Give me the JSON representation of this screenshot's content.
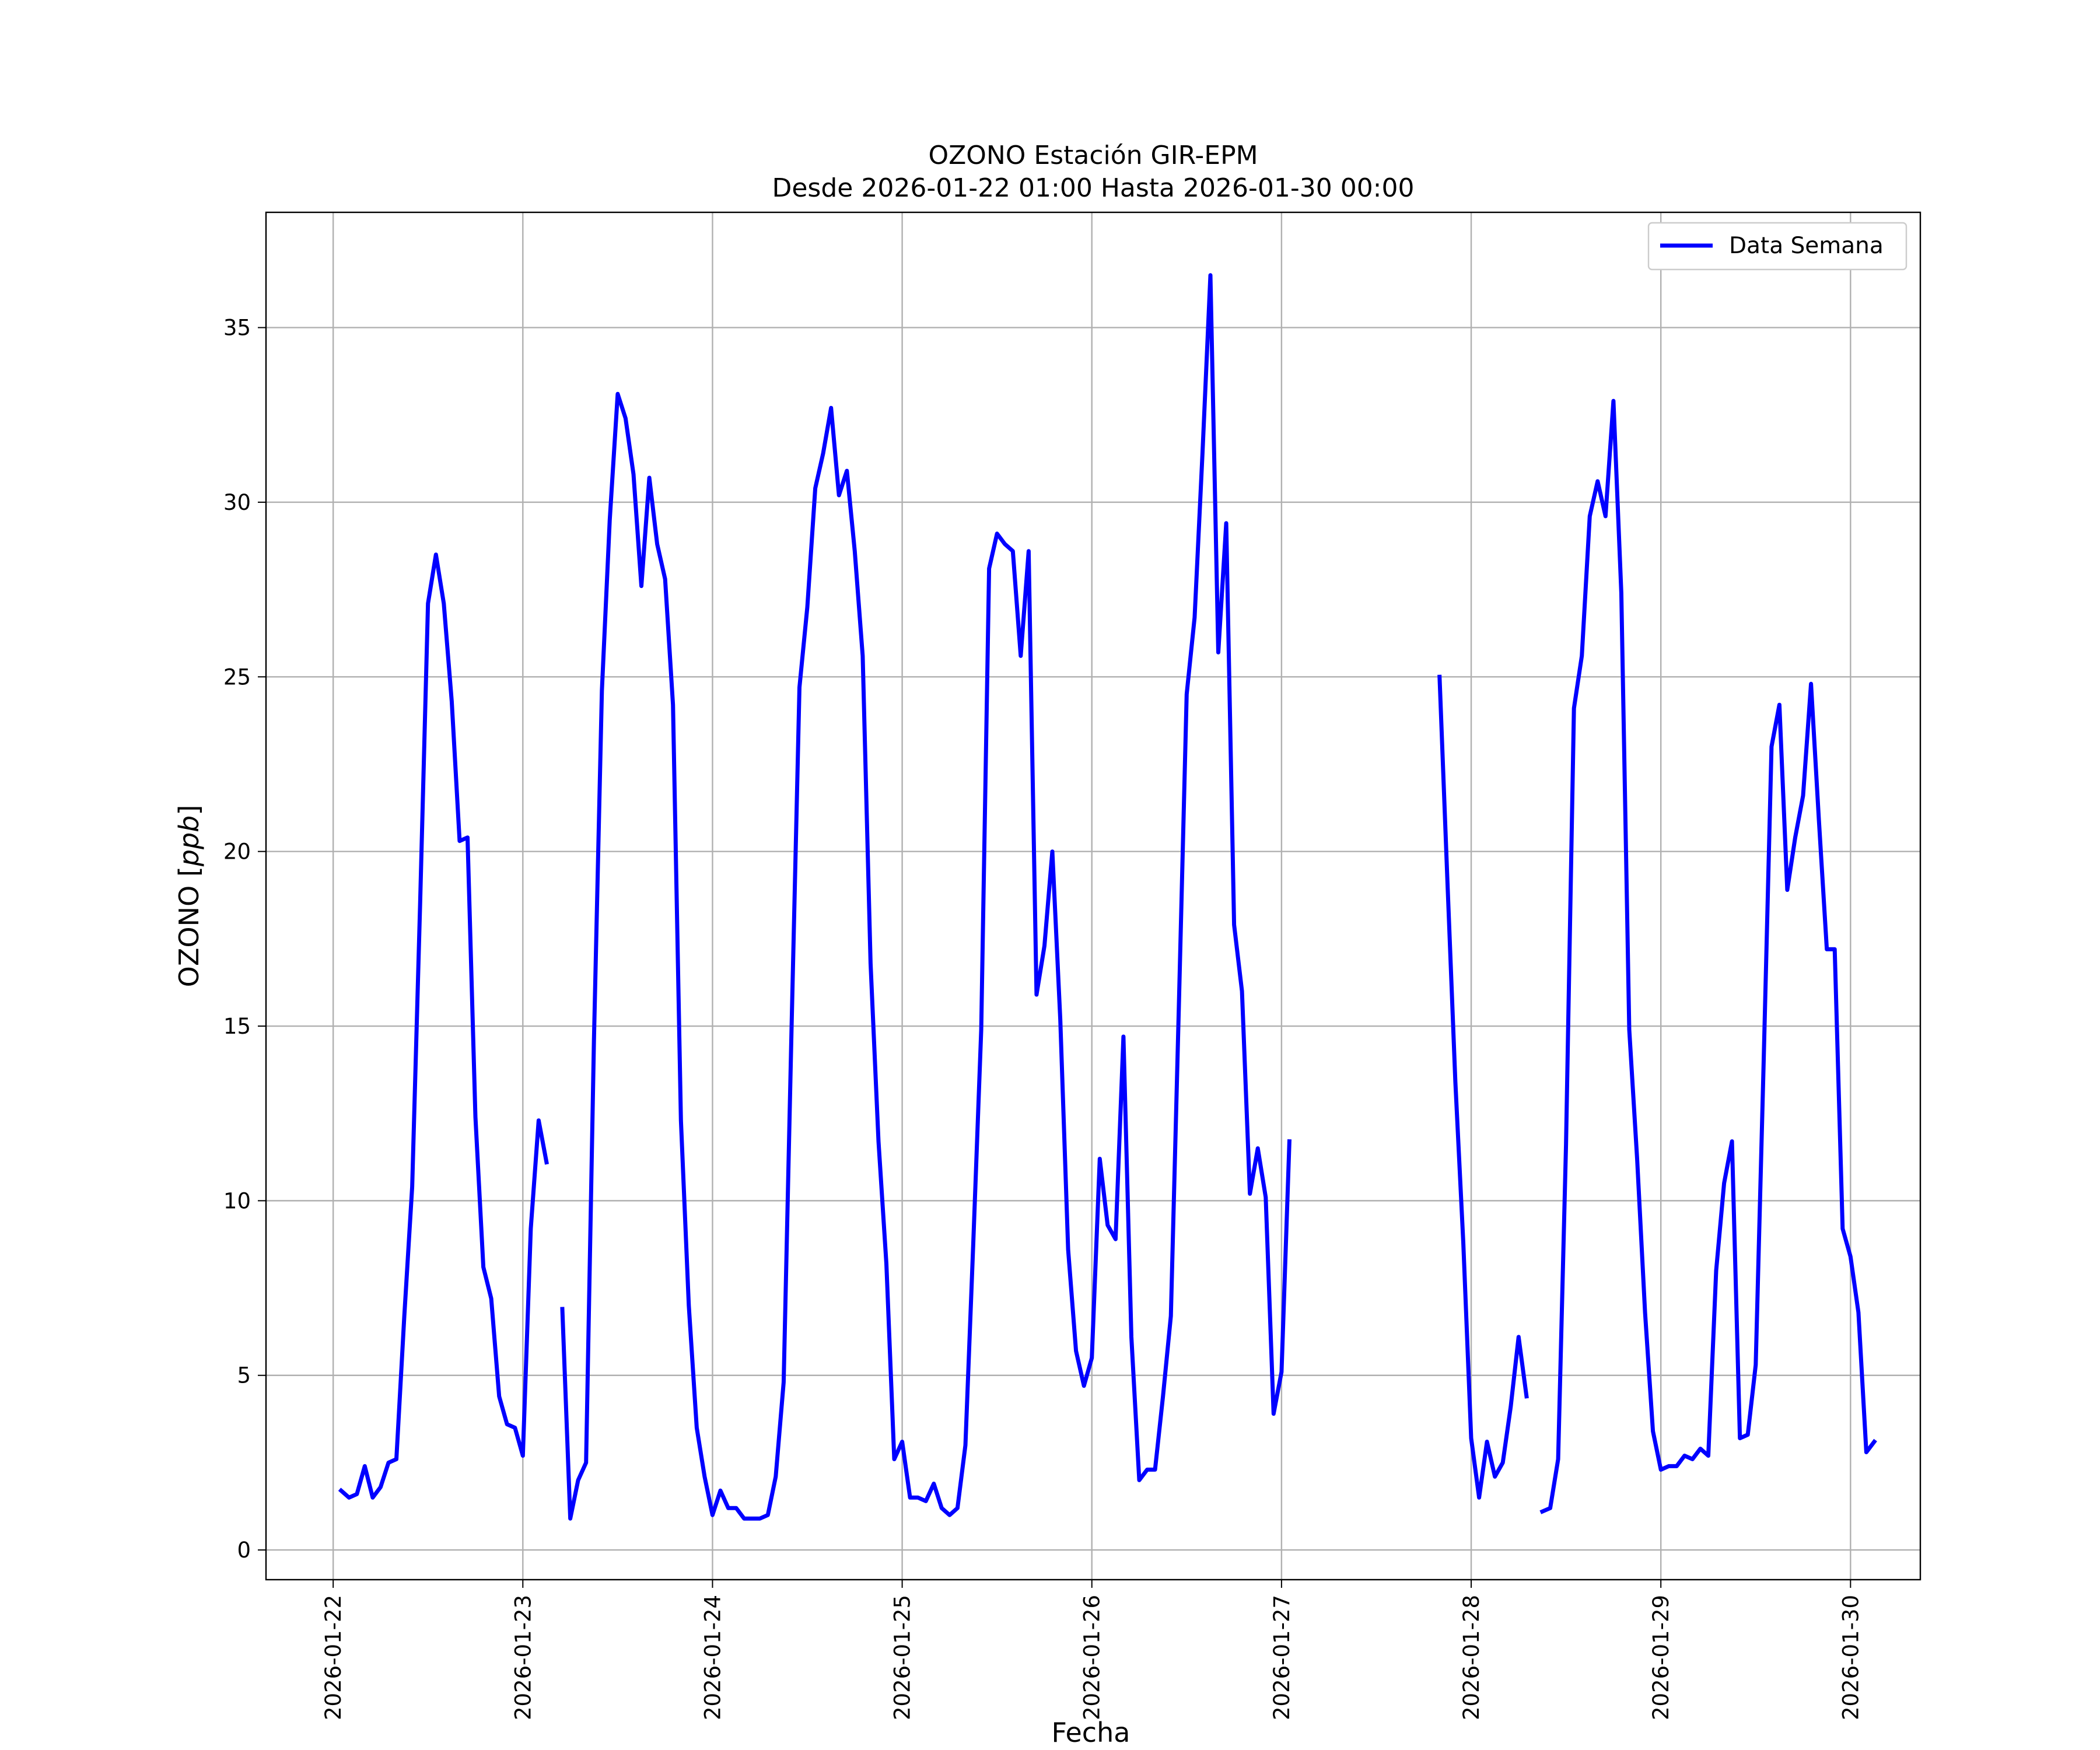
{
  "chart_data": {
    "type": "line",
    "title": "OZONO Estación GIR-EPM",
    "subtitle": "Desde 2026-01-22 01:00 Hasta 2026-01-30 00:00",
    "xlabel": "Fecha",
    "ylabel": "OZONO [ppb]",
    "ylabel_italic_part": "ppb",
    "xlim": [
      "2026-01-21 15:30",
      "2026-01-30 08:50"
    ],
    "ylim": [
      -0.85,
      38.3
    ],
    "grid": true,
    "legend_position": "top-right",
    "x_ticks": [
      "2026-01-22",
      "2026-01-23",
      "2026-01-24",
      "2026-01-25",
      "2026-01-26",
      "2026-01-27",
      "2026-01-28",
      "2026-01-29",
      "2026-01-30"
    ],
    "y_ticks": [
      0,
      5,
      10,
      15,
      20,
      25,
      30,
      35
    ],
    "start": "2026-01-22 01:00",
    "step_hours": 1,
    "series": [
      {
        "name": "Data Semana",
        "color": "#0000ff",
        "values": [
          1.7,
          1.5,
          1.6,
          2.4,
          1.5,
          1.8,
          2.5,
          2.6,
          6.7,
          10.4,
          18.5,
          27.1,
          28.5,
          27.1,
          24.3,
          20.3,
          20.4,
          12.4,
          8.1,
          7.2,
          4.4,
          3.6,
          3.5,
          2.7,
          9.2,
          12.3,
          11.1,
          null,
          6.9,
          0.9,
          2.0,
          2.5,
          14.6,
          24.6,
          29.5,
          33.1,
          32.4,
          30.8,
          27.6,
          30.7,
          28.8,
          27.8,
          24.2,
          12.3,
          7.0,
          3.5,
          2.1,
          1.0,
          1.7,
          1.2,
          1.2,
          0.9,
          0.9,
          0.9,
          1.0,
          2.1,
          4.8,
          14.9,
          24.7,
          27.0,
          30.4,
          31.4,
          32.7,
          30.2,
          30.9,
          28.6,
          25.6,
          16.8,
          11.7,
          8.2,
          2.6,
          3.1,
          1.5,
          1.5,
          1.4,
          1.9,
          1.2,
          1.0,
          1.2,
          3.0,
          8.8,
          14.9,
          28.1,
          29.1,
          28.8,
          28.6,
          25.6,
          28.6,
          15.9,
          17.3,
          20.0,
          15.2,
          8.6,
          5.7,
          4.7,
          5.5,
          11.2,
          9.3,
          8.9,
          14.7,
          6.1,
          2.0,
          2.3,
          2.3,
          4.4,
          6.7,
          15.5,
          24.5,
          26.7,
          31.4,
          36.5,
          25.7,
          29.4,
          17.9,
          16.0,
          10.2,
          11.5,
          10.1,
          3.9,
          5.1,
          11.7,
          null,
          null,
          null,
          null,
          null,
          null,
          null,
          null,
          null,
          null,
          null,
          null,
          null,
          null,
          null,
          null,
          null,
          null,
          25.0,
          19.1,
          13.4,
          8.8,
          3.2,
          1.5,
          3.1,
          2.1,
          2.5,
          4.1,
          6.1,
          4.4,
          null,
          1.1,
          1.2,
          2.6,
          11.6,
          24.1,
          25.6,
          29.6,
          30.6,
          29.6,
          32.9,
          27.4,
          14.9,
          11.2,
          6.8,
          3.4,
          2.3,
          2.4,
          2.4,
          2.7,
          2.6,
          2.9,
          2.7,
          8.0,
          10.5,
          11.7,
          3.2,
          3.3,
          5.3,
          13.9,
          23.0,
          24.2,
          18.9,
          20.4,
          21.6,
          24.8,
          20.9,
          17.2,
          17.2,
          9.2,
          8.4,
          6.8,
          2.8,
          3.1
        ]
      }
    ]
  }
}
